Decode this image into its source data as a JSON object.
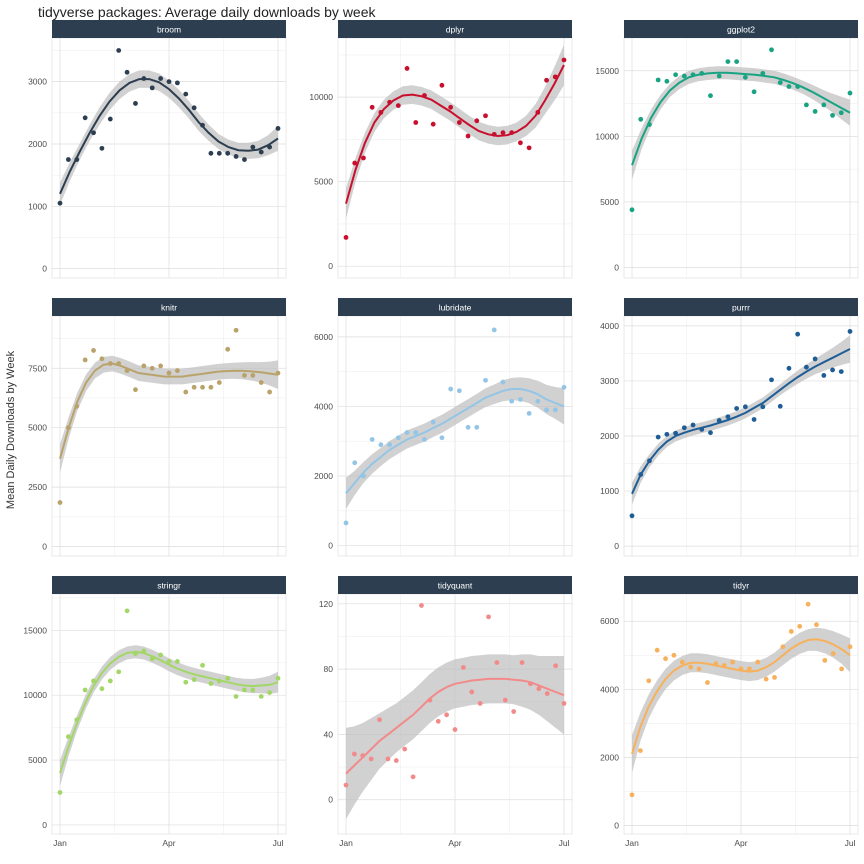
{
  "chart_data": {
    "type": "scatter",
    "title": "tidyverse packages: Average daily downloads by week",
    "ylabel": "Mean Daily Downloads by Week",
    "xlabel": "",
    "x_ticks": [
      "Jan",
      "Apr",
      "Jul"
    ],
    "x_tick_weeks": [
      0,
      13,
      26
    ],
    "smooth": "loess with confidence band",
    "grid": true,
    "layout": "facet 3x3",
    "facets": [
      {
        "name": "broom",
        "color": "#2C3E50",
        "ylim": [
          -150,
          3700
        ],
        "yticks": [
          0,
          1000,
          2000,
          3000
        ],
        "points": [
          1050,
          1750,
          1750,
          2420,
          2180,
          1930,
          2400,
          3500,
          3150,
          2650,
          3050,
          2900,
          3050,
          3000,
          2980,
          2800,
          2580,
          2300,
          1850,
          1850,
          1850,
          1800,
          1750,
          1950,
          1870,
          1950,
          2250
        ],
        "fit": [
          1200,
          1560,
          1880,
          2180,
          2450,
          2680,
          2860,
          2980,
          3040,
          3040,
          2990,
          2880,
          2730,
          2550,
          2350,
          2180,
          2040,
          1950,
          1900,
          1890,
          1910,
          1980,
          2090
        ],
        "band": [
          180,
          150,
          130,
          130,
          140,
          140,
          140,
          140,
          140,
          140,
          140,
          140,
          140,
          140,
          140,
          130,
          120,
          120,
          120,
          130,
          140,
          160,
          200
        ]
      },
      {
        "name": "dplyr",
        "color": "#C8102E",
        "ylim": [
          -700,
          13500
        ],
        "yticks": [
          0,
          5000,
          10000
        ],
        "points": [
          1700,
          6100,
          6400,
          9400,
          9100,
          9700,
          9500,
          11700,
          8500,
          10100,
          8400,
          10700,
          9400,
          8500,
          7700,
          8600,
          8900,
          7800,
          7900,
          7900,
          7300,
          7000,
          9100,
          11000,
          11200,
          12200
        ],
        "fit": [
          3700,
          5700,
          7300,
          8500,
          9300,
          9800,
          10100,
          10150,
          10050,
          9850,
          9500,
          9150,
          8750,
          8350,
          8000,
          7800,
          7700,
          7750,
          7950,
          8300,
          8900,
          9800,
          10800,
          11900
        ],
        "band": [
          900,
          700,
          600,
          550,
          550,
          550,
          550,
          550,
          550,
          550,
          550,
          550,
          550,
          550,
          550,
          550,
          550,
          550,
          550,
          600,
          700,
          800,
          1000,
          1200
        ]
      },
      {
        "name": "ggplot2",
        "color": "#18A383",
        "ylim": [
          -800,
          17500
        ],
        "yticks": [
          0,
          5000,
          10000,
          15000
        ],
        "points": [
          4400,
          11300,
          10900,
          14300,
          14200,
          14700,
          14600,
          14700,
          14800,
          13100,
          14600,
          15700,
          15700,
          14500,
          13400,
          14800,
          16600,
          14100,
          13800,
          13800,
          12400,
          11900,
          12400,
          11600,
          11800,
          13300
        ],
        "fit": [
          7800,
          9800,
          11400,
          12600,
          13500,
          14100,
          14500,
          14700,
          14800,
          14850,
          14850,
          14800,
          14750,
          14700,
          14600,
          14500,
          14300,
          14050,
          13750,
          13400,
          13000,
          12600,
          12200,
          11800
        ],
        "band": [
          1100,
          800,
          650,
          550,
          500,
          500,
          500,
          500,
          500,
          500,
          500,
          500,
          500,
          500,
          500,
          500,
          500,
          500,
          500,
          550,
          600,
          700,
          850,
          1000
        ]
      },
      {
        "name": "knitr",
        "color": "#B9A36B",
        "ylim": [
          -400,
          9700
        ],
        "yticks": [
          0,
          2500,
          5000,
          7500
        ],
        "points": [
          1850,
          5000,
          5900,
          7850,
          8250,
          7900,
          7700,
          7700,
          7400,
          6600,
          7600,
          7500,
          7600,
          7300,
          7400,
          6500,
          6700,
          6700,
          6700,
          6900,
          8300,
          9100,
          7200,
          7200,
          6900,
          6500,
          7300
        ],
        "fit": [
          3700,
          5000,
          6100,
          6900,
          7400,
          7650,
          7700,
          7600,
          7450,
          7300,
          7250,
          7200,
          7150,
          7150,
          7150,
          7200,
          7250,
          7300,
          7350,
          7380,
          7400,
          7390,
          7370,
          7330,
          7280,
          7230
        ],
        "band": [
          600,
          450,
          380,
          350,
          330,
          330,
          330,
          330,
          330,
          330,
          330,
          330,
          330,
          330,
          330,
          330,
          330,
          330,
          330,
          330,
          340,
          360,
          390,
          430,
          500,
          600
        ]
      },
      {
        "name": "lubridate",
        "color": "#93C5E6",
        "ylim": [
          -300,
          6600
        ],
        "yticks": [
          0,
          2000,
          4000,
          6000
        ],
        "points": [
          650,
          2380,
          2000,
          3050,
          2900,
          2900,
          3100,
          3250,
          3250,
          3050,
          3550,
          3100,
          4500,
          4450,
          3400,
          3400,
          4750,
          6200,
          4700,
          4150,
          4200,
          3800,
          4150,
          3900,
          3900,
          4550
        ],
        "fit": [
          1500,
          1800,
          2100,
          2350,
          2550,
          2750,
          2900,
          3050,
          3150,
          3250,
          3380,
          3500,
          3650,
          3800,
          3950,
          4100,
          4250,
          4350,
          4450,
          4500,
          4500,
          4450,
          4350,
          4200,
          4100,
          4000
        ],
        "band": [
          450,
          350,
          300,
          280,
          260,
          260,
          260,
          260,
          260,
          260,
          260,
          260,
          260,
          260,
          260,
          260,
          270,
          280,
          300,
          320,
          340,
          360,
          390,
          420,
          460,
          520
        ]
      },
      {
        "name": "purrr",
        "color": "#1F5D96",
        "ylim": [
          -180,
          4180
        ],
        "yticks": [
          0,
          1000,
          2000,
          3000,
          4000
        ],
        "points": [
          550,
          1300,
          1550,
          1980,
          2030,
          2050,
          2150,
          2200,
          2120,
          2060,
          2280,
          2350,
          2500,
          2530,
          2300,
          2530,
          3020,
          2540,
          3230,
          3850,
          3250,
          3400,
          3100,
          3200,
          3170,
          3900
        ],
        "fit": [
          950,
          1300,
          1550,
          1750,
          1900,
          2000,
          2060,
          2110,
          2150,
          2190,
          2240,
          2290,
          2350,
          2420,
          2510,
          2600,
          2720,
          2840,
          2960,
          3070,
          3170,
          3260,
          3340,
          3420,
          3500,
          3580
        ],
        "band": [
          200,
          150,
          120,
          110,
          100,
          100,
          100,
          100,
          100,
          100,
          100,
          100,
          100,
          100,
          100,
          100,
          100,
          100,
          110,
          120,
          130,
          140,
          160,
          180,
          210,
          250
        ]
      },
      {
        "name": "stringr",
        "color": "#A2D767",
        "ylim": [
          -700,
          17800
        ],
        "yticks": [
          0,
          5000,
          10000,
          15000
        ],
        "points": [
          2500,
          6800,
          8100,
          10400,
          11100,
          10500,
          11100,
          11800,
          16500,
          13200,
          13400,
          12800,
          13100,
          12600,
          12600,
          11000,
          11200,
          12300,
          10900,
          11100,
          11300,
          9900,
          10400,
          10400,
          9900,
          10200,
          11300
        ],
        "fit": [
          4000,
          6000,
          7800,
          9400,
          10700,
          11700,
          12450,
          12950,
          13250,
          13350,
          13250,
          13000,
          12700,
          12350,
          12050,
          11800,
          11600,
          11450,
          11300,
          11150,
          11000,
          10850,
          10750,
          10700,
          10750,
          10800,
          11000
        ],
        "band": [
          1000,
          750,
          600,
          550,
          500,
          500,
          500,
          500,
          500,
          500,
          500,
          500,
          500,
          500,
          500,
          500,
          500,
          500,
          500,
          500,
          500,
          500,
          520,
          550,
          600,
          700,
          800
        ]
      },
      {
        "name": "tidyquant",
        "color": "#F38A8A",
        "ylim": [
          -21,
          126
        ],
        "yticks": [
          0,
          40,
          80,
          120
        ],
        "points": [
          9,
          28,
          27,
          25,
          49,
          25,
          24,
          31,
          14,
          119,
          61,
          48,
          52,
          43,
          81,
          66,
          59,
          112,
          84,
          61,
          54,
          84,
          71,
          68,
          65,
          82,
          59
        ],
        "fit": [
          16,
          21,
          26,
          31,
          36,
          40,
          44,
          48,
          52,
          57,
          62,
          66,
          69,
          71,
          72,
          73,
          73.5,
          74,
          74,
          74,
          73.5,
          73,
          72,
          70,
          68,
          66,
          64
        ],
        "band": [
          28,
          24,
          21,
          19,
          17,
          16,
          15,
          15,
          15,
          15,
          15,
          15,
          15,
          15,
          15,
          15,
          15,
          15,
          15,
          15,
          15,
          16,
          17,
          18,
          20,
          22,
          24
        ]
      },
      {
        "name": "tidyr",
        "color": "#F7B05B",
        "ylim": [
          -250,
          6800
        ],
        "yticks": [
          0,
          2000,
          4000,
          6000
        ],
        "points": [
          900,
          2200,
          4250,
          5150,
          4900,
          5000,
          4800,
          4650,
          4600,
          4200,
          4750,
          4700,
          4800,
          4600,
          4600,
          4800,
          4300,
          4350,
          5250,
          5700,
          5850,
          6500,
          5900,
          4850,
          5050,
          4600,
          5250
        ],
        "fit": [
          2100,
          2900,
          3500,
          3950,
          4300,
          4550,
          4700,
          4780,
          4780,
          4750,
          4700,
          4650,
          4600,
          4550,
          4520,
          4550,
          4650,
          4800,
          5000,
          5200,
          5350,
          5450,
          5470,
          5420,
          5320,
          5180,
          5000
        ],
        "band": [
          550,
          420,
          350,
          320,
          300,
          290,
          280,
          280,
          280,
          280,
          280,
          280,
          280,
          280,
          280,
          280,
          280,
          280,
          290,
          300,
          310,
          320,
          340,
          360,
          390,
          430,
          500
        ]
      }
    ]
  }
}
